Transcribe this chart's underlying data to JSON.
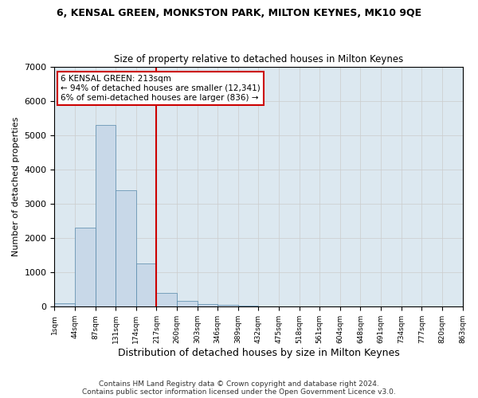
{
  "title": "6, KENSAL GREEN, MONKSTON PARK, MILTON KEYNES, MK10 9QE",
  "subtitle": "Size of property relative to detached houses in Milton Keynes",
  "xlabel": "Distribution of detached houses by size in Milton Keynes",
  "ylabel": "Number of detached properties",
  "footer_line1": "Contains HM Land Registry data © Crown copyright and database right 2024.",
  "footer_line2": "Contains public sector information licensed under the Open Government Licence v3.0.",
  "bin_labels": [
    "1sqm",
    "44sqm",
    "87sqm",
    "131sqm",
    "174sqm",
    "217sqm",
    "260sqm",
    "303sqm",
    "346sqm",
    "389sqm",
    "432sqm",
    "475sqm",
    "518sqm",
    "561sqm",
    "604sqm",
    "648sqm",
    "691sqm",
    "734sqm",
    "777sqm",
    "820sqm",
    "863sqm"
  ],
  "bar_values": [
    100,
    2300,
    5300,
    3400,
    1250,
    400,
    175,
    75,
    50,
    30,
    0,
    0,
    0,
    0,
    0,
    0,
    0,
    0,
    0,
    0
  ],
  "bar_color": "#c8d8e8",
  "bar_edge_color": "#5588aa",
  "ylim": [
    0,
    7000
  ],
  "yticks": [
    0,
    1000,
    2000,
    3000,
    4000,
    5000,
    6000,
    7000
  ],
  "property_line_x": 5,
  "property_line_color": "#cc0000",
  "annotation_text": "6 KENSAL GREEN: 213sqm\n← 94% of detached houses are smaller (12,341)\n6% of semi-detached houses are larger (836) →",
  "annotation_box_color": "#ffffff",
  "annotation_box_edge": "#cc0000",
  "grid_color": "#cccccc",
  "background_color": "#dce8f0"
}
